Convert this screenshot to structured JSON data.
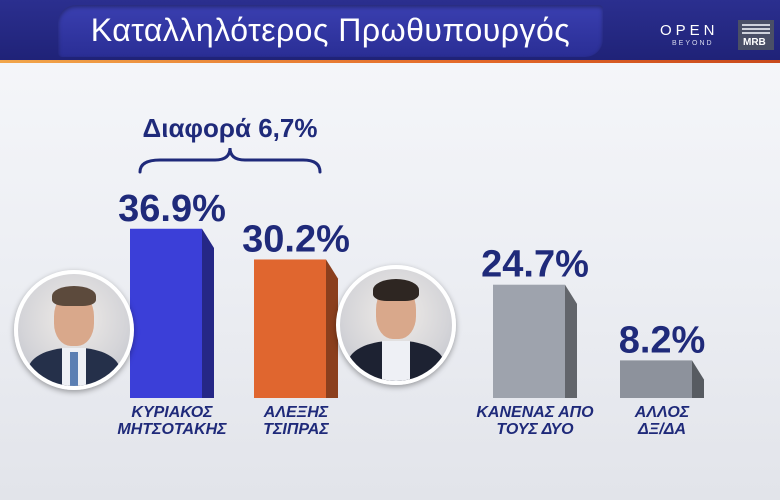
{
  "header": {
    "title": "Καταλληλότερος Πρωθυπουργός",
    "logo_open": "OPEN",
    "logo_beyond": "BEYOND",
    "logo_mrb": "MRB"
  },
  "annotation": {
    "difference_label": "Διαφορά 6,7%"
  },
  "colors": {
    "header_bg": "#2b2f8f",
    "accent_orange": "#e36a2a",
    "label_navy": "#1f2a7a"
  },
  "candidates": [
    {
      "icon": "portrait-mitsotakis-icon"
    },
    {
      "icon": "portrait-tsipras-icon"
    }
  ],
  "chart_data": {
    "type": "bar",
    "title": "Καταλληλότερος Πρωθυπουργός",
    "categories": [
      [
        "ΚΥΡΙΑΚΟΣ",
        "ΜΗΤΣΟΤΑΚΗΣ"
      ],
      [
        "ΑΛΕΞΗΣ",
        "ΤΣΙΠΡΑΣ"
      ],
      [
        "ΚΑΝΕΝΑΣ ΑΠΟ",
        "ΤΟΥΣ ΔΥΟ"
      ],
      [
        "ΑΛΛΟΣ",
        "ΔΞ/ΔΑ"
      ]
    ],
    "values": [
      36.9,
      30.2,
      24.7,
      8.2
    ],
    "value_labels": [
      "36.9%",
      "30.2%",
      "24.7%",
      "8.2%"
    ],
    "colors": [
      "#3b3fd8",
      "#e0662f",
      "#9ea3ad",
      "#8d929c"
    ],
    "ylim": [
      0,
      40
    ],
    "grid": false,
    "legend": "none"
  }
}
